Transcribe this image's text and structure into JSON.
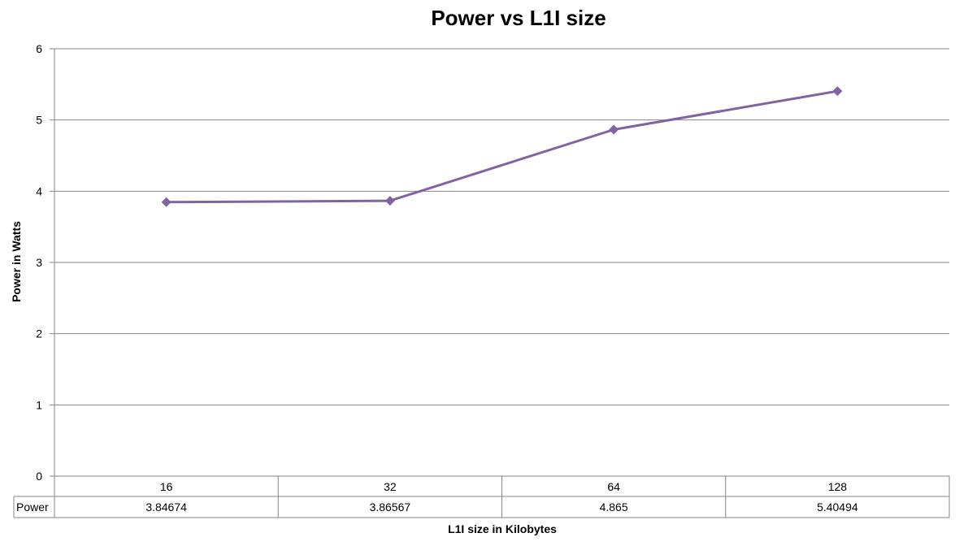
{
  "chart_data": {
    "type": "line",
    "title": "Power vs L1I size",
    "xlabel": "L1I size in Kilobytes",
    "ylabel": "Power in Watts",
    "categories": [
      "16",
      "32",
      "64",
      "128"
    ],
    "series": [
      {
        "name": "Power",
        "values": [
          3.84674,
          3.86567,
          4.865,
          5.40494
        ],
        "value_labels": [
          "3.84674",
          "3.86567",
          "4.865",
          "5.40494"
        ],
        "color": "#8064A2",
        "marker": "diamond"
      }
    ],
    "ylim": [
      0,
      6
    ],
    "yticks": [
      "0",
      "1",
      "2",
      "3",
      "4",
      "5",
      "6"
    ],
    "grid": true,
    "data_table": true,
    "legend": "none"
  }
}
